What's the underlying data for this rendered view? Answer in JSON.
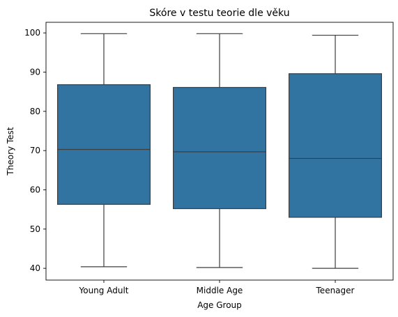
{
  "chart_data": {
    "type": "boxplot",
    "title": "Skóre v testu teorie dle věku",
    "xlabel": "Age Group",
    "ylabel": "Theory Test",
    "ylim": [
      37.0,
      102.7
    ],
    "yticks": [
      40,
      50,
      60,
      70,
      80,
      90,
      100
    ],
    "categories": [
      "Young Adult",
      "Middle Age",
      "Teenager"
    ],
    "boxes": [
      {
        "category": "Young Adult",
        "min": 40.4,
        "q1": 56.3,
        "median": 70.3,
        "q3": 86.8,
        "max": 99.8
      },
      {
        "category": "Middle Age",
        "min": 40.2,
        "q1": 55.2,
        "median": 69.7,
        "q3": 86.1,
        "max": 99.8
      },
      {
        "category": "Teenager",
        "min": 40.0,
        "q1": 53.0,
        "median": 68.0,
        "q3": 89.6,
        "max": 99.4
      }
    ],
    "colors": {
      "box_fill": "#3274a1",
      "line": "#3d3d3d",
      "axis": "#000000"
    },
    "grid": false,
    "legend": "none"
  }
}
